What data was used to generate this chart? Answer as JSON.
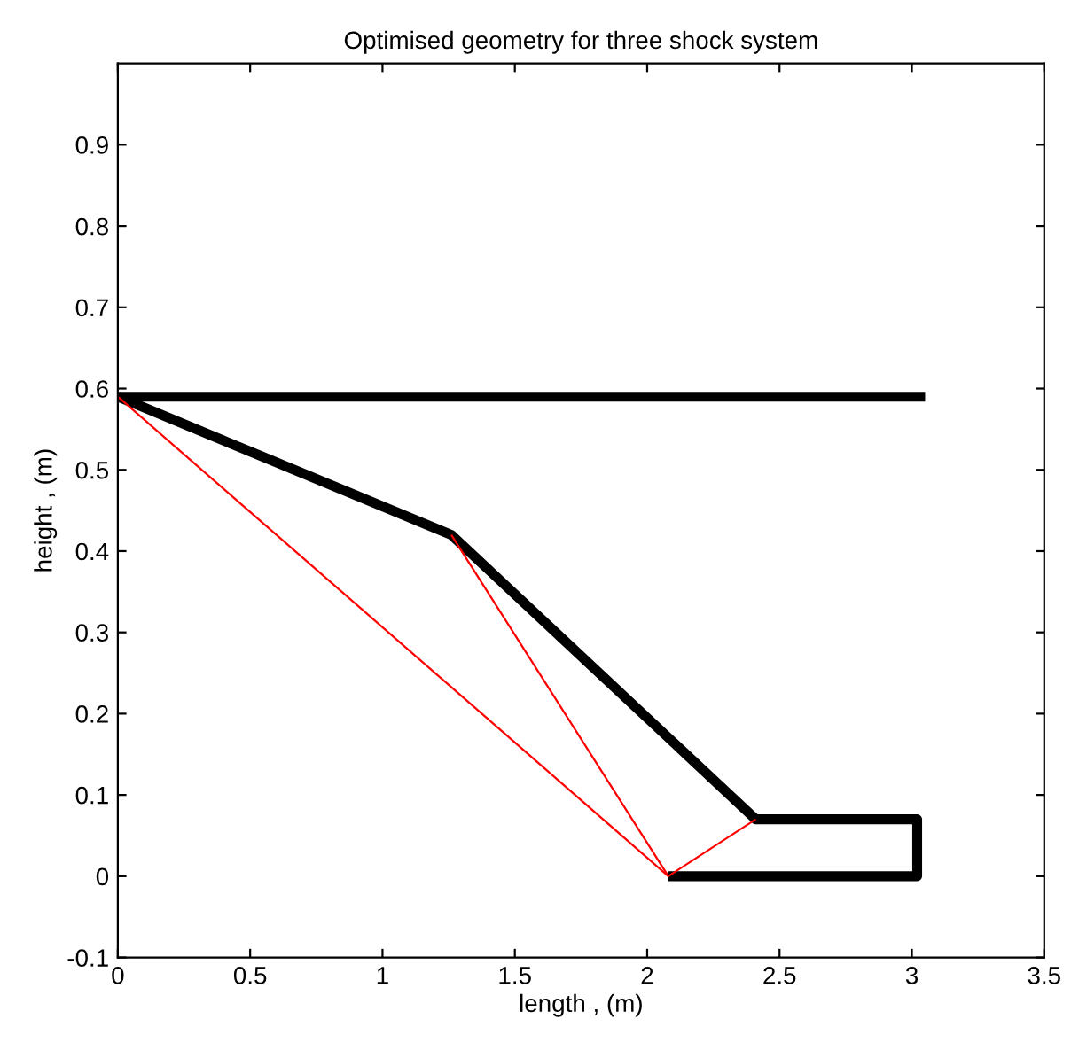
{
  "chart_data": {
    "type": "line",
    "title": "Optimised geometry for three shock system",
    "xlabel": "length , (m)",
    "ylabel": "height , (m)",
    "series": [
      {
        "color": "#000000",
        "x": [
          0,
          3.05
        ],
        "values": [
          0.59,
          0.59
        ]
      },
      {
        "color": "#000000",
        "x": [
          0,
          1.26,
          2.41,
          3.02,
          3.02,
          2.08
        ],
        "values": [
          0.59,
          0.42,
          0.07,
          0.07,
          0,
          0
        ]
      },
      {
        "color": "#ff0000",
        "x": [
          0,
          2.08
        ],
        "values": [
          0.59,
          0
        ]
      },
      {
        "color": "#ff0000",
        "x": [
          1.26,
          2.08,
          2.41
        ],
        "values": [
          0.42,
          0,
          0.07
        ]
      }
    ],
    "xlim": [
      0,
      3.5
    ],
    "xticks": [
      0,
      0.5,
      1,
      1.5,
      2,
      2.5,
      3,
      3.5
    ],
    "ylim": [
      -0.1,
      1
    ],
    "yticks": [
      -0.1,
      0,
      0.1,
      0.2,
      0.3,
      0.4,
      0.5,
      0.6,
      0.7,
      0.8,
      0.9
    ],
    "grid": false,
    "legend": false,
    "marker": "none",
    "line_style": "solid"
  }
}
